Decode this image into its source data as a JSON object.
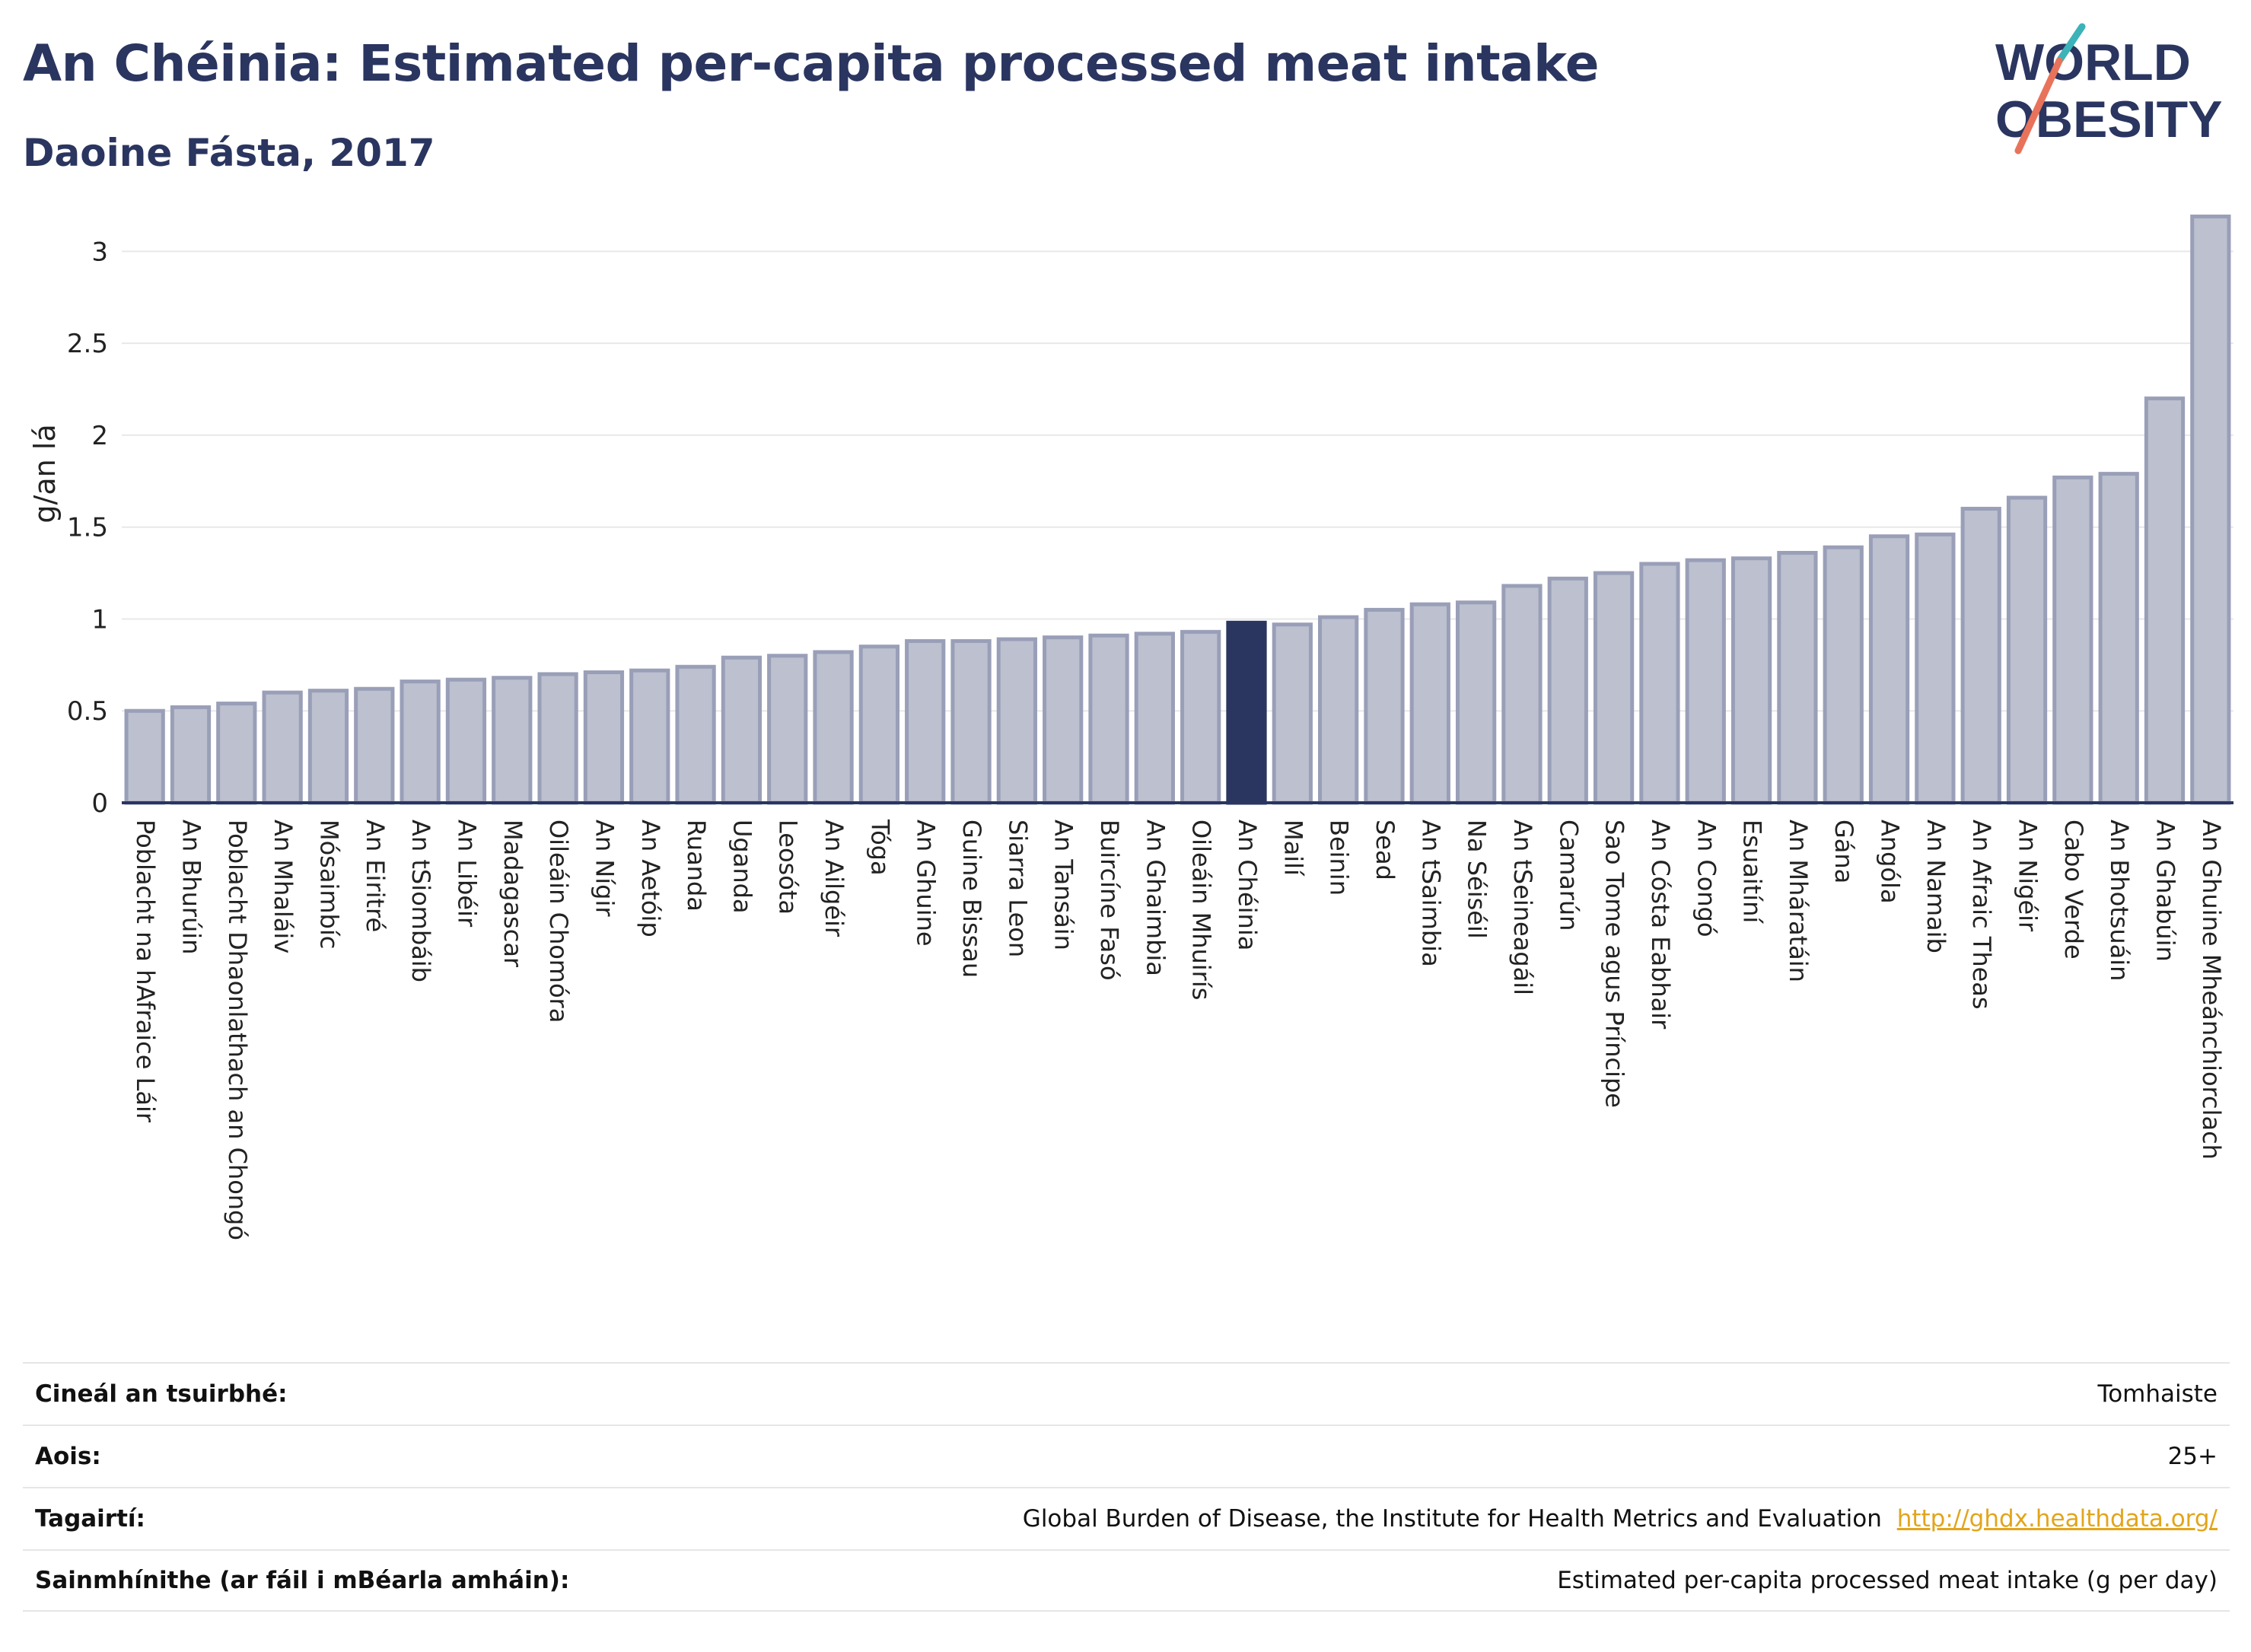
{
  "header": {
    "title": "An Chéinia: Estimated per-capita processed meat intake",
    "subtitle": "Daoine Fásta, 2017"
  },
  "logo": {
    "line1": "WORLD",
    "line2": "OBESITY",
    "colors": {
      "text": "#2a3560",
      "slash_teal": "#3bb3b9",
      "slash_coral": "#e8735a"
    }
  },
  "colors": {
    "bar_fill": "#bcc0cf",
    "bar_stroke": "#9a9fb8",
    "highlight": "#2a3560",
    "gridline": "#e8e8e8",
    "axis": "#2a3560"
  },
  "chart_data": {
    "type": "bar",
    "ylabel": "g/an lá",
    "ylim": [
      0,
      3.25
    ],
    "yticks": [
      "0",
      "0.5",
      "1",
      "1.5",
      "2",
      "2.5",
      "3"
    ],
    "ytick_values": [
      0,
      0.5,
      1,
      1.5,
      2,
      2.5,
      3
    ],
    "grid": true,
    "highlight_category": "An Chéinia",
    "categories": [
      "Poblacht na hAfraice Láir",
      "An Bhurúin",
      "Poblacht Dhaonlathach an Chongó",
      "An Mhaláiv",
      "Mósaimbíc",
      "An Eiritré",
      "An tSiombáib",
      "An Libéir",
      "Madagascar",
      "Oileáin Chomóra",
      "An Nígir",
      "An Aetóip",
      "Ruanda",
      "Uganda",
      "Leosóta",
      "An Ailgéir",
      "Tóga",
      "An Ghuine",
      "Guine Bissau",
      "Siarra Leon",
      "An Tansáin",
      "Buircíne Fasó",
      "An Ghaimbia",
      "Oileáin Mhuirís",
      "An Chéinia",
      "Mailí",
      "Beinin",
      "Sead",
      "An tSaimbia",
      "Na Séiséil",
      "An tSeineagáil",
      "Camarún",
      "Sao Tome agus Príncipe",
      "An Cósta Eabhair",
      "An Congó",
      "Esuaitíní",
      "An Mháratáin",
      "Gána",
      "Angóla",
      "An Namaib",
      "An Afraic Theas",
      "An Nigéir",
      "Cabo Verde",
      "An Bhotsuáin",
      "An Ghabúin",
      "An Ghuine Mheánchiorclach"
    ],
    "values": [
      0.5,
      0.52,
      0.54,
      0.6,
      0.61,
      0.62,
      0.66,
      0.67,
      0.68,
      0.7,
      0.71,
      0.72,
      0.74,
      0.79,
      0.8,
      0.82,
      0.85,
      0.88,
      0.88,
      0.89,
      0.9,
      0.91,
      0.92,
      0.93,
      0.98,
      0.97,
      1.01,
      1.05,
      1.08,
      1.09,
      1.18,
      1.22,
      1.25,
      1.3,
      1.32,
      1.33,
      1.36,
      1.39,
      1.45,
      1.46,
      1.6,
      1.66,
      1.77,
      1.79,
      2.2,
      3.19
    ]
  },
  "metadata": {
    "rows": [
      {
        "key": "Cineál an tsuirbhé:",
        "value": "Tomhaiste",
        "link": ""
      },
      {
        "key": "Aois:",
        "value": "25+",
        "link": ""
      },
      {
        "key": "Tagairtí:",
        "value": "Global Burden of Disease, the Institute for Health Metrics and Evaluation",
        "link": "http://ghdx.healthdata.org/"
      },
      {
        "key": "Sainmhínithe (ar fáil i mBéarla amháin):",
        "value": "Estimated per-capita processed meat intake (g per day)",
        "link": ""
      }
    ]
  }
}
